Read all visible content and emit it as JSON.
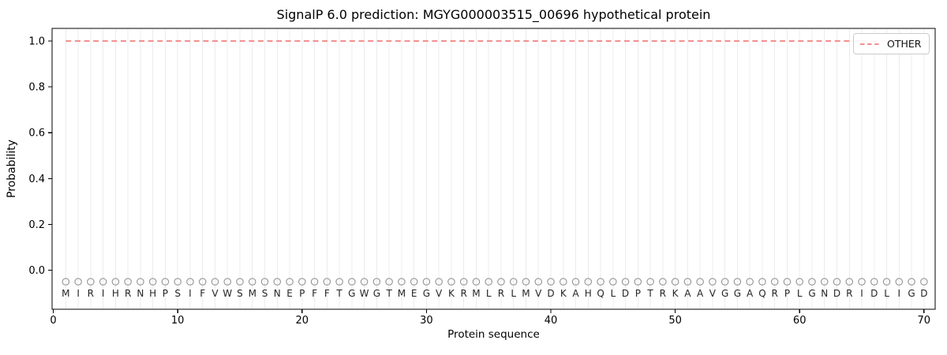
{
  "figure": {
    "title": "SignalP 6.0 prediction: MGYG000003515_00696 hypothetical protein",
    "xlabel": "Protein sequence",
    "ylabel": "Probability",
    "legend": {
      "label": "OTHER",
      "line_color": "#f08080",
      "line_style": "dashed",
      "position": "upper right"
    }
  },
  "chart_data": {
    "type": "line",
    "title": "SignalP 6.0 prediction: MGYG000003515_00696 hypothetical protein",
    "xlabel": "Protein sequence",
    "ylabel": "Probability",
    "xlim": [
      -0.1,
      70.9
    ],
    "ylim": [
      -0.17,
      1.055
    ],
    "x_ticks": [
      0,
      10,
      20,
      30,
      40,
      50,
      60,
      70
    ],
    "y_ticks": [
      0.0,
      0.2,
      0.4,
      0.6,
      0.8,
      1.0
    ],
    "grid": {
      "vertical_per_residue": true,
      "horizontal": false,
      "color": "#ececec"
    },
    "legend_position": "upper right",
    "series": [
      {
        "name": "OTHER",
        "color": "#f08080",
        "linestyle": "dashed",
        "linewidth": 1.8,
        "x": [
          1,
          2,
          3,
          4,
          5,
          6,
          7,
          8,
          9,
          10,
          11,
          12,
          13,
          14,
          15,
          16,
          17,
          18,
          19,
          20,
          21,
          22,
          23,
          24,
          25,
          26,
          27,
          28,
          29,
          30,
          31,
          32,
          33,
          34,
          35,
          36,
          37,
          38,
          39,
          40,
          41,
          42,
          43,
          44,
          45,
          46,
          47,
          48,
          49,
          50,
          51,
          52,
          53,
          54,
          55,
          56,
          57,
          58,
          59,
          60,
          61,
          62,
          63,
          64,
          65,
          66,
          67,
          68,
          69,
          70
        ],
        "y": [
          1.0,
          1.0,
          1.0,
          1.0,
          1.0,
          1.0,
          1.0,
          1.0,
          1.0,
          1.0,
          1.0,
          1.0,
          1.0,
          1.0,
          1.0,
          1.0,
          1.0,
          1.0,
          1.0,
          1.0,
          1.0,
          1.0,
          1.0,
          1.0,
          1.0,
          1.0,
          1.0,
          1.0,
          1.0,
          1.0,
          1.0,
          1.0,
          1.0,
          1.0,
          1.0,
          1.0,
          1.0,
          1.0,
          1.0,
          1.0,
          1.0,
          1.0,
          1.0,
          1.0,
          1.0,
          1.0,
          1.0,
          1.0,
          1.0,
          1.0,
          1.0,
          1.0,
          1.0,
          1.0,
          1.0,
          1.0,
          1.0,
          1.0,
          1.0,
          1.0,
          1.0,
          1.0,
          1.0,
          1.0,
          1.0,
          1.0,
          1.0,
          1.0,
          1.0,
          1.0
        ]
      }
    ],
    "sequence": "MIRIHRNHPSIFVWSMSNEPFFTGWGTMEGVKRMLRLMVDKAHQLDPTRKAAVGGAQRPLGNDRIDLIGD",
    "sequence_markers": {
      "shape": "open-circle",
      "color": "#949494",
      "y": -0.05
    },
    "sequence_letters": {
      "color": "#262626",
      "y": -0.098
    }
  }
}
